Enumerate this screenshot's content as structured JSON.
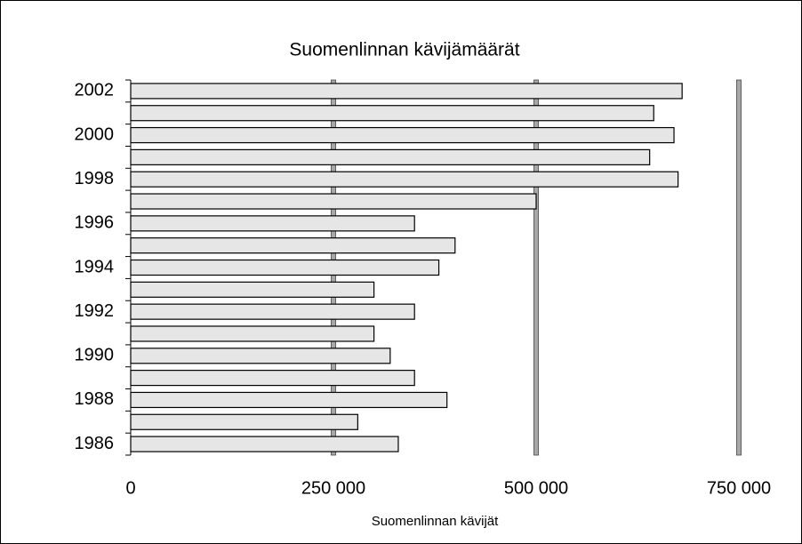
{
  "chart_data": {
    "type": "hbar",
    "title": "Suomenlinnan kävijämäärät",
    "x_label": "Suomenlinnan kävijät",
    "categories": [
      "1986",
      null,
      "1988",
      null,
      "1990",
      null,
      "1992",
      null,
      "1994",
      null,
      "1996",
      null,
      "1998",
      null,
      "2000",
      null,
      "2002"
    ],
    "values": [
      330000,
      280000,
      390000,
      350000,
      320000,
      300000,
      350000,
      300000,
      380000,
      400000,
      350000,
      500000,
      675000,
      640000,
      670000,
      645000,
      680000
    ],
    "color": "#e6e6e6",
    "xlim": [
      0,
      750000
    ],
    "xticks": [
      0,
      {
        "value": 250000,
        "label": "250 000"
      },
      {
        "value": 500000,
        "label": "500 000"
      },
      {
        "value": 750000,
        "label": "750 000"
      }
    ],
    "grid": true
  }
}
